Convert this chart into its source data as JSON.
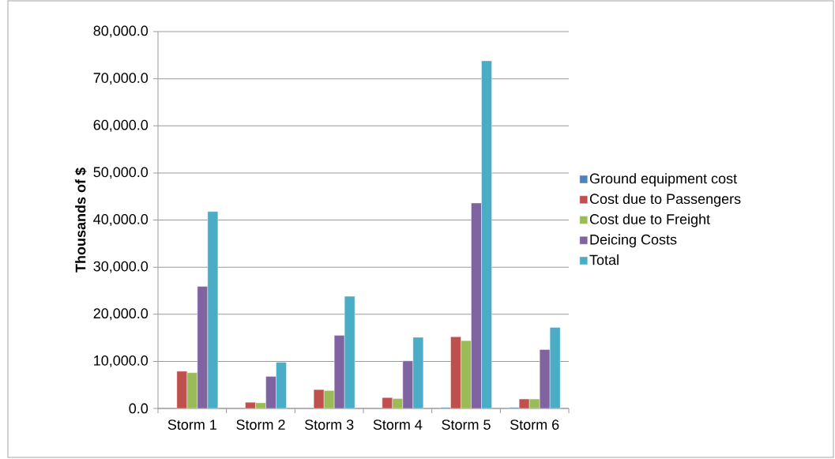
{
  "chart_data": {
    "type": "bar",
    "ylabel": "Thousands of $",
    "categories": [
      "Storm 1",
      "Storm 2",
      "Storm 3",
      "Storm 4",
      "Storm 5",
      "Storm 6"
    ],
    "series": [
      {
        "name": "Ground equipment cost",
        "color": "#4f81bd",
        "values": [
          null,
          null,
          null,
          null,
          200,
          200
        ]
      },
      {
        "name": "Cost due to Passengers",
        "color": "#c0504d",
        "values": [
          7900,
          1300,
          4000,
          2300,
          15200,
          2000
        ]
      },
      {
        "name": "Cost due to Freight",
        "color": "#9bbb59",
        "values": [
          7600,
          1200,
          3800,
          2100,
          14400,
          2000
        ]
      },
      {
        "name": "Deicing Costs",
        "color": "#8064a2",
        "values": [
          25900,
          6800,
          15500,
          10100,
          43600,
          12500
        ]
      },
      {
        "name": "Total",
        "color": "#4bacc6",
        "values": [
          41800,
          9800,
          23800,
          15100,
          73800,
          17200
        ]
      }
    ],
    "ylim": [
      0,
      80000
    ],
    "yticks": [
      {
        "value": 0,
        "label": "0.0"
      },
      {
        "value": 10000,
        "label": "10,000.0"
      },
      {
        "value": 20000,
        "label": "20,000.0"
      },
      {
        "value": 30000,
        "label": "30,000.0"
      },
      {
        "value": 40000,
        "label": "40,000.0"
      },
      {
        "value": 50000,
        "label": "50,000.0"
      },
      {
        "value": 60000,
        "label": "60,000.0"
      },
      {
        "value": 70000,
        "label": "70,000.0"
      },
      {
        "value": 80000,
        "label": "80,000.0"
      }
    ],
    "grid": "y",
    "legend": "right"
  }
}
